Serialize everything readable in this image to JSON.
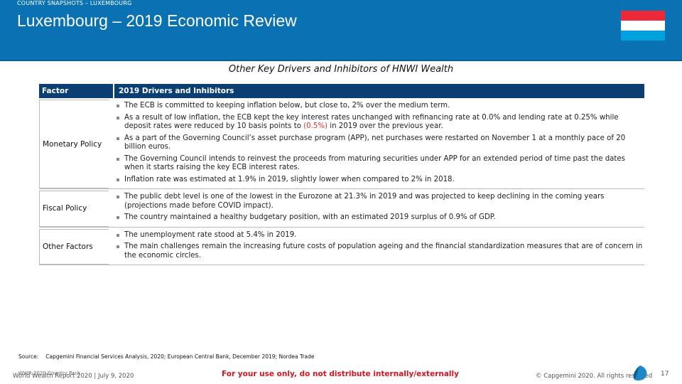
{
  "header": {
    "section": "COUNTRY SNAPSHOTS – LUXEMBOURG",
    "title": "Luxembourg – 2019 Economic Review"
  },
  "subtitle": "Other Key Drivers and Inhibitors of HNWI Wealth",
  "table": {
    "columns": [
      "Factor",
      "2019 Drivers and Inhibitors"
    ],
    "rows": [
      {
        "factor": "Monetary Policy",
        "bullets": [
          [
            "The ECB is committed to keeping inflation below, but close to, 2% over the medium term."
          ],
          [
            "As a result of low inflation, the ECB kept the key interest rates unchanged with refinancing rate at 0.0% and lending rate at 0.25% while deposit rates were reduced by 10 basis points to ",
            "(0.5%)",
            " in 2019 over the previous year."
          ],
          [
            "As a part of the Governing Council’s asset purchase program (APP), net purchases were restarted on November 1 at a monthly pace of 20 billion euros."
          ],
          [
            "The Governing Council intends to reinvest the proceeds from maturing securities under APP for an extended period of time past the dates when it starts raising the key ECB interest rates."
          ],
          [
            "Inflation rate was estimated at 1.9% in 2019, slightly lower when compared to 2% in 2018."
          ]
        ]
      },
      {
        "factor": "Fiscal Policy",
        "bullets": [
          [
            "The public debt level is one of the lowest in the Eurozone at 21.3% in 2019 and was projected to keep declining in the coming years (projections made before COVID impact)."
          ],
          [
            "The country maintained a healthy budgetary position, with an estimated 2019 surplus of 0.9% of GDP."
          ]
        ]
      },
      {
        "factor": "Other Factors",
        "bullets": [
          [
            "The unemployment rate stood at 5.4% in 2019."
          ],
          [
            "The main challenges remain the increasing future costs of population ageing and the financial standardization measures that are of concern in the economic circles."
          ]
        ]
      }
    ]
  },
  "source": {
    "label": "Source:",
    "text": "Capgemini Financial Services Analysis, 2020; European Central Bank, December 2019; Nordea Trade"
  },
  "footer": {
    "pack": "WWR 2020 Country Pack",
    "report": "World Wealth Report 2020 | July 9, 2020",
    "notice": "For your use only, do not distribute internally/externally",
    "copyright": "© Capgemini 2020. All rights reserved",
    "page": "17"
  }
}
